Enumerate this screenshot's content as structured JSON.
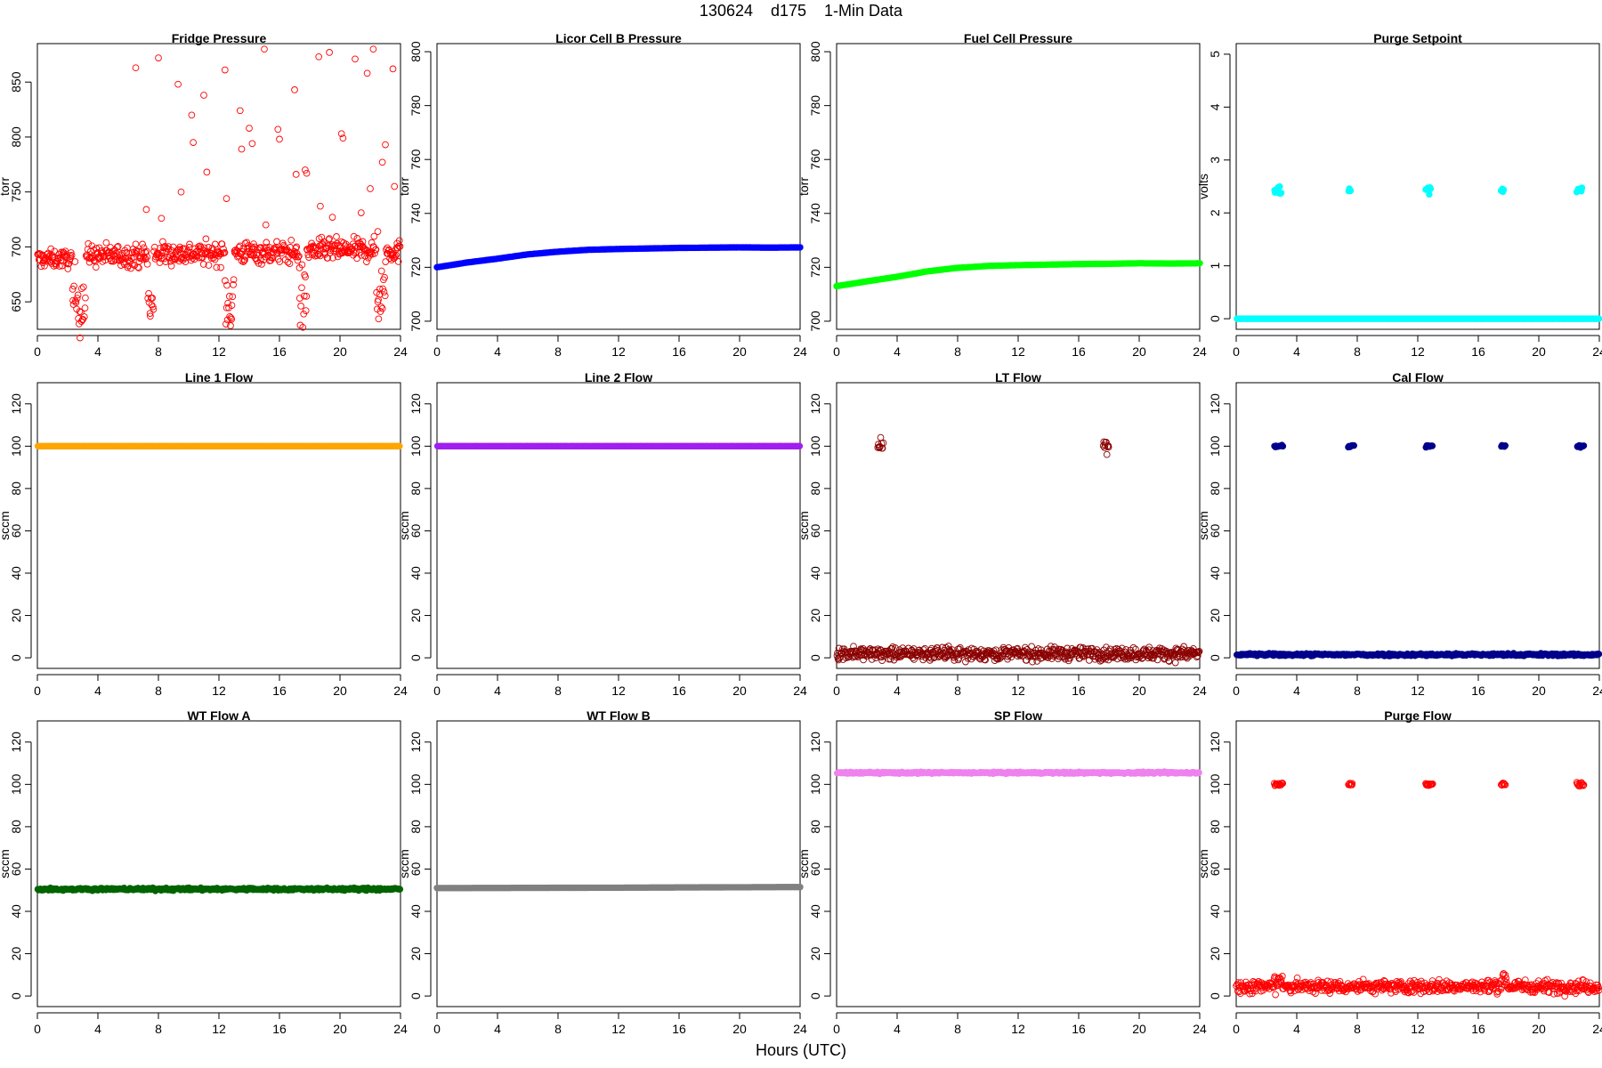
{
  "figure": {
    "title": "130624    d175    1-Min Data",
    "xlabel": "Hours (UTC)"
  },
  "chart_data": [
    {
      "type": "scatter",
      "title": "Fridge Pressure",
      "ylabel": "torr",
      "color": "#ff0000",
      "marker": "open-circle",
      "xlim": [
        0,
        24
      ],
      "xticks": [
        0,
        4,
        8,
        12,
        16,
        20,
        24
      ],
      "ylim": [
        625,
        885
      ],
      "yticks": [
        650,
        700,
        750,
        800,
        850
      ],
      "series": [
        {
          "kind": "noisy",
          "segments": [
            [
              0,
              2.3,
              689,
              4
            ],
            [
              2.3,
              3.2,
              652,
              15
            ],
            [
              3.2,
              7.3,
              692,
              5
            ],
            [
              7.3,
              7.7,
              645,
              15
            ],
            [
              7.7,
              12.4,
              694,
              5
            ],
            [
              12.4,
              13.0,
              652,
              15
            ],
            [
              13.0,
              17.3,
              695,
              5
            ],
            [
              17.3,
              17.8,
              652,
              15
            ],
            [
              17.8,
              22.4,
              697,
              5
            ],
            [
              22.4,
              23.0,
              658,
              15
            ],
            [
              23.0,
              24,
              696,
              5
            ]
          ]
        }
      ],
      "outliers": [
        [
          6.5,
          863
        ],
        [
          7.2,
          734
        ],
        [
          8.0,
          872
        ],
        [
          8.2,
          726
        ],
        [
          9.3,
          848
        ],
        [
          9.5,
          750
        ],
        [
          10.2,
          820
        ],
        [
          10.3,
          795
        ],
        [
          11.0,
          838
        ],
        [
          11.2,
          768
        ],
        [
          12.4,
          861
        ],
        [
          12.5,
          744
        ],
        [
          13.4,
          824
        ],
        [
          13.5,
          789
        ],
        [
          14.0,
          808
        ],
        [
          14.2,
          794
        ],
        [
          15.0,
          880
        ],
        [
          15.1,
          720
        ],
        [
          15.9,
          807
        ],
        [
          16.0,
          798
        ],
        [
          17.0,
          843
        ],
        [
          17.1,
          766
        ],
        [
          17.7,
          770
        ],
        [
          17.8,
          767
        ],
        [
          18.6,
          873
        ],
        [
          18.7,
          737
        ],
        [
          19.3,
          877
        ],
        [
          19.5,
          727
        ],
        [
          20.1,
          803
        ],
        [
          20.2,
          799
        ],
        [
          21.0,
          871
        ],
        [
          21.4,
          731
        ],
        [
          21.8,
          858
        ],
        [
          22.0,
          753
        ],
        [
          22.2,
          880
        ],
        [
          22.5,
          714
        ],
        [
          22.8,
          777
        ],
        [
          23.0,
          793
        ],
        [
          23.5,
          862
        ],
        [
          23.6,
          755
        ]
      ]
    },
    {
      "type": "line",
      "title": "Licor Cell B Pressure",
      "ylabel": "torr",
      "color": "#0000ff",
      "xlim": [
        0,
        24
      ],
      "xticks": [
        0,
        4,
        8,
        12,
        16,
        20,
        24
      ],
      "ylim": [
        697,
        803
      ],
      "yticks": [
        700,
        720,
        740,
        760,
        780,
        800
      ],
      "series": [
        {
          "kind": "curve",
          "points": [
            [
              0,
              720
            ],
            [
              2,
              721.8
            ],
            [
              4,
              723.2
            ],
            [
              6,
              724.8
            ],
            [
              8,
              725.8
            ],
            [
              10,
              726.5
            ],
            [
              12,
              726.8
            ],
            [
              14,
              727.0
            ],
            [
              16,
              727.2
            ],
            [
              18,
              727.3
            ],
            [
              20,
              727.4
            ],
            [
              22,
              727.3
            ],
            [
              24,
              727.4
            ]
          ]
        }
      ]
    },
    {
      "type": "line",
      "title": "Fuel Cell Pressure",
      "ylabel": "torr",
      "color": "#00ff00",
      "xlim": [
        0,
        24
      ],
      "xticks": [
        0,
        4,
        8,
        12,
        16,
        20,
        24
      ],
      "ylim": [
        697,
        803
      ],
      "yticks": [
        700,
        720,
        740,
        760,
        780,
        800
      ],
      "series": [
        {
          "kind": "curve",
          "points": [
            [
              0,
              713
            ],
            [
              2,
              714.8
            ],
            [
              4,
              716.5
            ],
            [
              6,
              718.5
            ],
            [
              8,
              719.8
            ],
            [
              10,
              720.5
            ],
            [
              12,
              720.8
            ],
            [
              14,
              721.0
            ],
            [
              16,
              721.2
            ],
            [
              18,
              721.3
            ],
            [
              20,
              721.5
            ],
            [
              22,
              721.4
            ],
            [
              24,
              721.5
            ]
          ]
        }
      ]
    },
    {
      "type": "scatter",
      "title": "Purge Setpoint",
      "ylabel": "volts",
      "color": "#00ffff",
      "xlim": [
        0,
        24
      ],
      "xticks": [
        0,
        4,
        8,
        12,
        16,
        20,
        24
      ],
      "ylim": [
        -0.2,
        5.2
      ],
      "yticks": [
        0,
        1,
        2,
        3,
        4,
        5
      ],
      "series": [
        {
          "kind": "noisy",
          "segments": [
            [
              0,
              24,
              0,
              0
            ]
          ]
        },
        {
          "kind": "noisy",
          "segments": [
            [
              2.5,
              3.0,
              2.44,
              0.04
            ],
            [
              7.4,
              7.6,
              2.42,
              0.02
            ],
            [
              12.5,
              12.9,
              2.44,
              0.04
            ],
            [
              17.5,
              17.7,
              2.42,
              0.02
            ],
            [
              22.5,
              22.9,
              2.44,
              0.04
            ]
          ]
        }
      ]
    },
    {
      "type": "line",
      "title": "Line 1 Flow",
      "ylabel": "sccm",
      "color": "#ffa500",
      "xlim": [
        0,
        24
      ],
      "xticks": [
        0,
        4,
        8,
        12,
        16,
        20,
        24
      ],
      "ylim": [
        -5,
        130
      ],
      "yticks": [
        0,
        20,
        40,
        60,
        80,
        100,
        120
      ],
      "series": [
        {
          "kind": "noisy",
          "segments": [
            [
              0,
              24,
              100,
              0
            ]
          ]
        }
      ]
    },
    {
      "type": "line",
      "title": "Line 2 Flow",
      "ylabel": "sccm",
      "color": "#a020f0",
      "xlim": [
        0,
        24
      ],
      "xticks": [
        0,
        4,
        8,
        12,
        16,
        20,
        24
      ],
      "ylim": [
        -5,
        130
      ],
      "yticks": [
        0,
        20,
        40,
        60,
        80,
        100,
        120
      ],
      "series": [
        {
          "kind": "noisy",
          "segments": [
            [
              0,
              24,
              100,
              0
            ]
          ]
        }
      ]
    },
    {
      "type": "scatter",
      "title": "LT Flow",
      "ylabel": "sccm",
      "color": "#8b0000",
      "marker": "open-circle",
      "xlim": [
        0,
        24
      ],
      "xticks": [
        0,
        4,
        8,
        12,
        16,
        20,
        24
      ],
      "ylim": [
        -5,
        130
      ],
      "yticks": [
        0,
        20,
        40,
        60,
        80,
        100,
        120
      ],
      "series": [
        {
          "kind": "noisy",
          "segments": [
            [
              0,
              24,
              2,
              1.5
            ]
          ]
        },
        {
          "kind": "noisy",
          "segments": [
            [
              2.7,
              3.1,
              100,
              1.5
            ],
            [
              17.6,
              18.0,
              100,
              1.5
            ]
          ]
        }
      ]
    },
    {
      "type": "scatter",
      "title": "Cal Flow",
      "ylabel": "sccm",
      "color": "#00008b",
      "xlim": [
        0,
        24
      ],
      "xticks": [
        0,
        4,
        8,
        12,
        16,
        20,
        24
      ],
      "ylim": [
        -5,
        130
      ],
      "yticks": [
        0,
        20,
        40,
        60,
        80,
        100,
        120
      ],
      "series": [
        {
          "kind": "noisy",
          "segments": [
            [
              0,
              24,
              1.5,
              0.3
            ]
          ]
        },
        {
          "kind": "noisy",
          "segments": [
            [
              2.5,
              3.1,
              100,
              0.3
            ],
            [
              7.4,
              7.8,
              100,
              0.3
            ],
            [
              12.5,
              13.0,
              100,
              0.3
            ],
            [
              17.5,
              17.8,
              100,
              0.3
            ],
            [
              22.5,
              23.0,
              100,
              0.3
            ]
          ]
        }
      ]
    },
    {
      "type": "line",
      "title": "WT Flow A",
      "ylabel": "sccm",
      "color": "#006400",
      "xlim": [
        0,
        24
      ],
      "xticks": [
        0,
        4,
        8,
        12,
        16,
        20,
        24
      ],
      "ylim": [
        -5,
        130
      ],
      "yticks": [
        0,
        20,
        40,
        60,
        80,
        100,
        120
      ],
      "series": [
        {
          "kind": "noisy",
          "segments": [
            [
              0,
              24,
              50.5,
              0.3
            ]
          ]
        }
      ]
    },
    {
      "type": "line",
      "title": "WT Flow B",
      "ylabel": "sccm",
      "color": "#808080",
      "xlim": [
        0,
        24
      ],
      "xticks": [
        0,
        4,
        8,
        12,
        16,
        20,
        24
      ],
      "ylim": [
        -5,
        130
      ],
      "yticks": [
        0,
        20,
        40,
        60,
        80,
        100,
        120
      ],
      "series": [
        {
          "kind": "curve",
          "points": [
            [
              0,
              51
            ],
            [
              12,
              51.2
            ],
            [
              24,
              51.5
            ]
          ]
        }
      ]
    },
    {
      "type": "line",
      "title": "SP Flow",
      "ylabel": "sccm",
      "color": "#ee82ee",
      "xlim": [
        0,
        24
      ],
      "xticks": [
        0,
        4,
        8,
        12,
        16,
        20,
        24
      ],
      "ylim": [
        -5,
        130
      ],
      "yticks": [
        0,
        20,
        40,
        60,
        80,
        100,
        120
      ],
      "series": [
        {
          "kind": "noisy",
          "segments": [
            [
              0,
              24,
              105.5,
              0.2
            ]
          ]
        }
      ]
    },
    {
      "type": "scatter",
      "title": "Purge Flow",
      "ylabel": "sccm",
      "color": "#ff0000",
      "marker": "open-circle",
      "xlim": [
        0,
        24
      ],
      "xticks": [
        0,
        4,
        8,
        12,
        16,
        20,
        24
      ],
      "ylim": [
        -5,
        130
      ],
      "yticks": [
        0,
        20,
        40,
        60,
        80,
        100,
        120
      ],
      "series": [
        {
          "kind": "noisy",
          "segments": [
            [
              0,
              2.5,
              4.5,
              1.5
            ],
            [
              2.5,
              3.1,
              7.5,
              2.5
            ],
            [
              3.1,
              17.4,
              4.5,
              1.5
            ],
            [
              17.4,
              17.9,
              7.5,
              2.5
            ],
            [
              17.9,
              24,
              4.5,
              1.5
            ]
          ]
        },
        {
          "kind": "noisy",
          "segments": [
            [
              2.5,
              3.1,
              100,
              0.4
            ],
            [
              7.4,
              7.7,
              100,
              0.4
            ],
            [
              12.5,
              13.0,
              100,
              0.4
            ],
            [
              17.5,
              17.8,
              100,
              0.4
            ],
            [
              22.5,
              23.0,
              100,
              0.4
            ]
          ]
        }
      ]
    }
  ]
}
